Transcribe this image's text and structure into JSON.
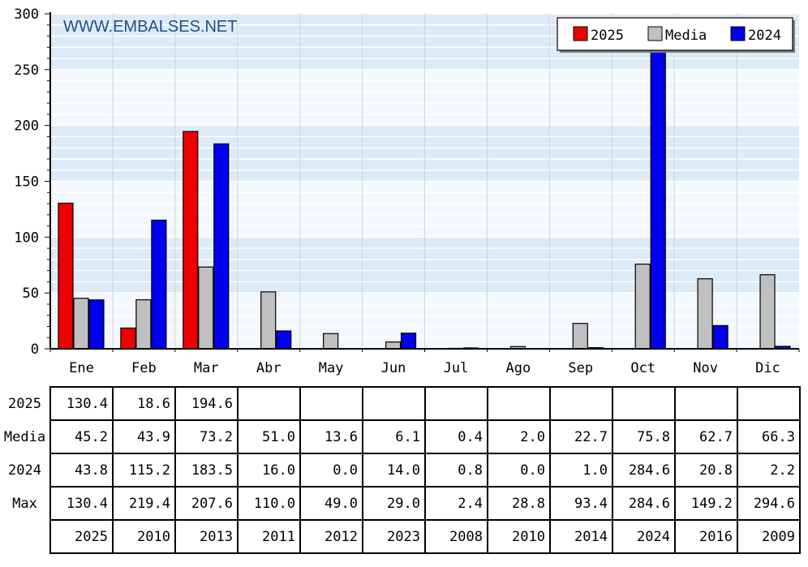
{
  "watermark": "WWW.EMBALSES.NET",
  "colors": {
    "2025": "#ee0000",
    "Media": "#c0c0c0",
    "2024": "#0000ee"
  },
  "chart_data": {
    "type": "bar",
    "categories": [
      "Ene",
      "Feb",
      "Mar",
      "Abr",
      "May",
      "Jun",
      "Jul",
      "Ago",
      "Sep",
      "Oct",
      "Nov",
      "Dic"
    ],
    "ylim": [
      0,
      300
    ],
    "yticks": [
      "0",
      "50",
      "100",
      "150",
      "200",
      "250",
      "300"
    ],
    "legend_position": "top-right",
    "series": [
      {
        "name": "2025",
        "values": [
          130.4,
          18.6,
          194.6,
          null,
          null,
          null,
          null,
          null,
          null,
          null,
          null,
          null
        ]
      },
      {
        "name": "Media",
        "values": [
          45.2,
          43.9,
          73.2,
          51.0,
          13.6,
          6.1,
          0.4,
          2.0,
          22.7,
          75.8,
          62.7,
          66.3
        ]
      },
      {
        "name": "2024",
        "values": [
          43.8,
          115.2,
          183.5,
          16.0,
          0.0,
          14.0,
          0.8,
          0.0,
          1.0,
          284.6,
          20.8,
          2.2
        ]
      }
    ]
  },
  "table": {
    "rows": [
      {
        "label": "2025",
        "cells": [
          "130.4",
          "18.6",
          "194.6",
          "",
          "",
          "",
          "",
          "",
          "",
          "",
          "",
          ""
        ]
      },
      {
        "label": "Media",
        "cells": [
          "45.2",
          "43.9",
          "73.2",
          "51.0",
          "13.6",
          "6.1",
          "0.4",
          "2.0",
          "22.7",
          "75.8",
          "62.7",
          "66.3"
        ]
      },
      {
        "label": "2024",
        "cells": [
          "43.8",
          "115.2",
          "183.5",
          "16.0",
          "0.0",
          "14.0",
          "0.8",
          "0.0",
          "1.0",
          "284.6",
          "20.8",
          "2.2"
        ]
      },
      {
        "label": "Max",
        "cells": [
          "130.4",
          "219.4",
          "207.6",
          "110.0",
          "49.0",
          "29.0",
          "2.4",
          "28.8",
          "93.4",
          "284.6",
          "149.2",
          "294.6"
        ]
      },
      {
        "label": "",
        "cells": [
          "2025",
          "2010",
          "2013",
          "2011",
          "2012",
          "2023",
          "2008",
          "2010",
          "2014",
          "2024",
          "2016",
          "2009"
        ]
      }
    ]
  }
}
